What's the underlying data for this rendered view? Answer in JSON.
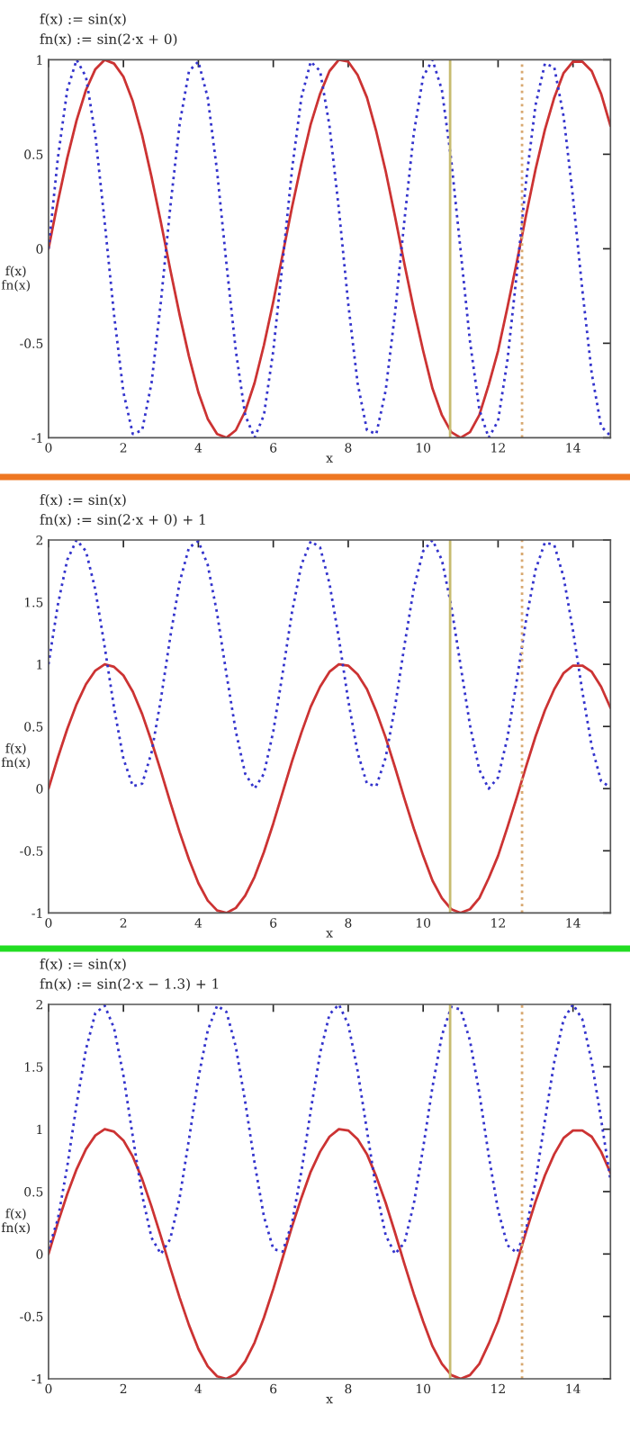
{
  "chart_data": [
    {
      "type": "line",
      "title": "f(x) := sin(x)",
      "subtitle": "fn(x) := sin(2·x + 0)",
      "xlabel": "x",
      "ylabel": "f(x)\nfn(x)",
      "x": [
        0,
        0.25,
        0.5,
        0.75,
        1,
        1.25,
        1.5,
        1.75,
        2,
        2.25,
        2.5,
        2.75,
        3,
        3.25,
        3.5,
        3.75,
        4,
        4.25,
        4.5,
        4.75,
        5,
        5.25,
        5.5,
        5.75,
        6,
        6.25,
        6.5,
        6.75,
        7,
        7.25,
        7.5,
        7.75,
        8,
        8.25,
        8.5,
        8.75,
        9,
        9.25,
        9.5,
        9.75,
        10,
        10.25,
        10.5,
        10.75,
        11,
        11.25,
        11.5,
        11.75,
        12,
        12.25,
        12.5,
        12.75,
        13,
        13.25,
        13.5,
        13.75,
        14,
        14.25,
        14.5,
        14.75,
        15
      ],
      "series": [
        {
          "color": "#cc3333",
          "line_style": "solid",
          "values": [
            0,
            0.25,
            0.48,
            0.68,
            0.84,
            0.95,
            1.0,
            0.98,
            0.91,
            0.78,
            0.6,
            0.38,
            0.14,
            -0.11,
            -0.35,
            -0.57,
            -0.76,
            -0.9,
            -0.98,
            -1.0,
            -0.96,
            -0.86,
            -0.71,
            -0.51,
            -0.28,
            -0.03,
            0.22,
            0.45,
            0.66,
            0.82,
            0.94,
            1.0,
            0.99,
            0.92,
            0.8,
            0.62,
            0.41,
            0.17,
            -0.08,
            -0.32,
            -0.54,
            -0.74,
            -0.88,
            -0.97,
            -1.0,
            -0.97,
            -0.88,
            -0.72,
            -0.54,
            -0.31,
            -0.07,
            0.18,
            0.42,
            0.63,
            0.8,
            0.93,
            0.99,
            0.99,
            0.94,
            0.82,
            0.65
          ]
        },
        {
          "color": "#3333cc",
          "line_style": "dotted",
          "values": [
            0,
            0.48,
            0.84,
            1.0,
            0.91,
            0.6,
            0.14,
            -0.35,
            -0.76,
            -0.98,
            -0.96,
            -0.71,
            -0.28,
            0.22,
            0.66,
            0.94,
            0.99,
            0.8,
            0.41,
            -0.08,
            -0.54,
            -0.88,
            -1.0,
            -0.88,
            -0.54,
            -0.07,
            0.42,
            0.8,
            0.99,
            0.94,
            0.65,
            0.21,
            -0.29,
            -0.71,
            -0.96,
            -0.98,
            -0.75,
            -0.34,
            0.15,
            0.61,
            0.91,
            1.0,
            0.84,
            0.47,
            -0.01,
            -0.49,
            -0.85,
            -1.0,
            -0.91,
            -0.59,
            -0.13,
            0.36,
            0.76,
            0.98,
            0.96,
            0.7,
            0.27,
            -0.22,
            -0.66,
            -0.94,
            -0.99
          ]
        }
      ],
      "xlim": [
        0,
        15
      ],
      "xticks": [
        0,
        2,
        4,
        6,
        8,
        10,
        12,
        14
      ],
      "ylim": [
        -1,
        1
      ],
      "yticks": [
        -1,
        -0.5,
        0,
        0.5,
        1
      ],
      "ref_lines": [
        {
          "axis": "x",
          "value": 10.72,
          "color": "#c8bc70",
          "line_style": "solid"
        },
        {
          "axis": "x",
          "value": 12.64,
          "color": "#d8a870",
          "line_style": "dotted"
        }
      ]
    },
    {
      "type": "line",
      "title": "f(x) := sin(x)",
      "subtitle": "fn(x) := sin(2·x + 0) + 1",
      "xlabel": "x",
      "ylabel": "f(x)\nfn(x)",
      "x": [
        0,
        0.25,
        0.5,
        0.75,
        1,
        1.25,
        1.5,
        1.75,
        2,
        2.25,
        2.5,
        2.75,
        3,
        3.25,
        3.5,
        3.75,
        4,
        4.25,
        4.5,
        4.75,
        5,
        5.25,
        5.5,
        5.75,
        6,
        6.25,
        6.5,
        6.75,
        7,
        7.25,
        7.5,
        7.75,
        8,
        8.25,
        8.5,
        8.75,
        9,
        9.25,
        9.5,
        9.75,
        10,
        10.25,
        10.5,
        10.75,
        11,
        11.25,
        11.5,
        11.75,
        12,
        12.25,
        12.5,
        12.75,
        13,
        13.25,
        13.5,
        13.75,
        14,
        14.25,
        14.5,
        14.75,
        15
      ],
      "series": [
        {
          "color": "#cc3333",
          "line_style": "solid",
          "values": [
            0,
            0.25,
            0.48,
            0.68,
            0.84,
            0.95,
            1.0,
            0.98,
            0.91,
            0.78,
            0.6,
            0.38,
            0.14,
            -0.11,
            -0.35,
            -0.57,
            -0.76,
            -0.9,
            -0.98,
            -1.0,
            -0.96,
            -0.86,
            -0.71,
            -0.51,
            -0.28,
            -0.03,
            0.22,
            0.45,
            0.66,
            0.82,
            0.94,
            1.0,
            0.99,
            0.92,
            0.8,
            0.62,
            0.41,
            0.17,
            -0.08,
            -0.32,
            -0.54,
            -0.74,
            -0.88,
            -0.97,
            -1.0,
            -0.97,
            -0.88,
            -0.72,
            -0.54,
            -0.31,
            -0.07,
            0.18,
            0.42,
            0.63,
            0.8,
            0.93,
            0.99,
            0.99,
            0.94,
            0.82,
            0.65
          ]
        },
        {
          "color": "#3333cc",
          "line_style": "dotted",
          "values": [
            1,
            1.48,
            1.84,
            2.0,
            1.91,
            1.6,
            1.14,
            0.65,
            0.24,
            0.02,
            0.04,
            0.29,
            0.72,
            1.22,
            1.66,
            1.94,
            1.99,
            1.8,
            1.41,
            0.92,
            0.46,
            0.12,
            0.0,
            0.12,
            0.46,
            0.93,
            1.42,
            1.8,
            1.99,
            1.94,
            1.65,
            1.21,
            0.71,
            0.29,
            0.04,
            0.02,
            0.25,
            0.66,
            1.15,
            1.61,
            1.91,
            2.0,
            1.84,
            1.47,
            0.99,
            0.51,
            0.15,
            0.0,
            0.09,
            0.41,
            0.87,
            1.36,
            1.76,
            1.98,
            1.96,
            1.7,
            1.27,
            0.78,
            0.34,
            0.06,
            0.01
          ]
        }
      ],
      "xlim": [
        0,
        15
      ],
      "xticks": [
        0,
        2,
        4,
        6,
        8,
        10,
        12,
        14
      ],
      "ylim": [
        -1,
        2
      ],
      "yticks": [
        -1,
        -0.5,
        0,
        0.5,
        1,
        1.5,
        2
      ],
      "ref_lines": [
        {
          "axis": "x",
          "value": 10.72,
          "color": "#c8bc70",
          "line_style": "solid"
        },
        {
          "axis": "x",
          "value": 12.64,
          "color": "#d8a870",
          "line_style": "dotted"
        }
      ]
    },
    {
      "type": "line",
      "title": "f(x) := sin(x)",
      "subtitle": "fn(x) := sin(2·x − 1.3) + 1",
      "xlabel": "x",
      "ylabel": "f(x)\nfn(x)",
      "x": [
        0,
        0.25,
        0.5,
        0.75,
        1,
        1.25,
        1.5,
        1.75,
        2,
        2.25,
        2.5,
        2.75,
        3,
        3.25,
        3.5,
        3.75,
        4,
        4.25,
        4.5,
        4.75,
        5,
        5.25,
        5.5,
        5.75,
        6,
        6.25,
        6.5,
        6.75,
        7,
        7.25,
        7.5,
        7.75,
        8,
        8.25,
        8.5,
        8.75,
        9,
        9.25,
        9.5,
        9.75,
        10,
        10.25,
        10.5,
        10.75,
        11,
        11.25,
        11.5,
        11.75,
        12,
        12.25,
        12.5,
        12.75,
        13,
        13.25,
        13.5,
        13.75,
        14,
        14.25,
        14.5,
        14.75,
        15
      ],
      "series": [
        {
          "color": "#cc3333",
          "line_style": "solid",
          "values": [
            0,
            0.25,
            0.48,
            0.68,
            0.84,
            0.95,
            1.0,
            0.98,
            0.91,
            0.78,
            0.6,
            0.38,
            0.14,
            -0.11,
            -0.35,
            -0.57,
            -0.76,
            -0.9,
            -0.98,
            -1.0,
            -0.96,
            -0.86,
            -0.71,
            -0.51,
            -0.28,
            -0.03,
            0.22,
            0.45,
            0.66,
            0.82,
            0.94,
            1.0,
            0.99,
            0.92,
            0.8,
            0.62,
            0.41,
            0.17,
            -0.08,
            -0.32,
            -0.54,
            -0.74,
            -0.88,
            -0.97,
            -1.0,
            -0.97,
            -0.88,
            -0.72,
            -0.54,
            -0.31,
            -0.07,
            0.18,
            0.42,
            0.63,
            0.8,
            0.93,
            0.99,
            0.99,
            0.94,
            0.82,
            0.65
          ]
        },
        {
          "color": "#3333cc",
          "line_style": "dotted",
          "values": [
            0.04,
            0.28,
            0.7,
            1.2,
            1.64,
            1.93,
            1.99,
            1.81,
            1.43,
            0.94,
            0.47,
            0.13,
            0.0,
            0.12,
            0.45,
            0.92,
            1.41,
            1.79,
            1.99,
            1.94,
            1.66,
            1.22,
            0.73,
            0.3,
            0.04,
            0.02,
            0.25,
            0.66,
            1.15,
            1.61,
            1.92,
            2.0,
            1.84,
            1.47,
            0.99,
            0.51,
            0.15,
            0.0,
            0.09,
            0.4,
            0.85,
            1.34,
            1.75,
            1.98,
            1.96,
            1.71,
            1.29,
            0.79,
            0.35,
            0.07,
            0.01,
            0.2,
            0.58,
            1.07,
            1.54,
            1.88,
            2.0,
            1.88,
            1.54,
            1.08,
            0.59
          ]
        }
      ],
      "xlim": [
        0,
        15
      ],
      "xticks": [
        0,
        2,
        4,
        6,
        8,
        10,
        12,
        14
      ],
      "ylim": [
        -1,
        2
      ],
      "yticks": [
        -1,
        -0.5,
        0,
        0.5,
        1,
        1.5,
        2
      ],
      "ref_lines": [
        {
          "axis": "x",
          "value": 10.72,
          "color": "#c8bc70",
          "line_style": "solid"
        },
        {
          "axis": "x",
          "value": 12.64,
          "color": "#d8a870",
          "line_style": "dotted"
        }
      ]
    }
  ]
}
